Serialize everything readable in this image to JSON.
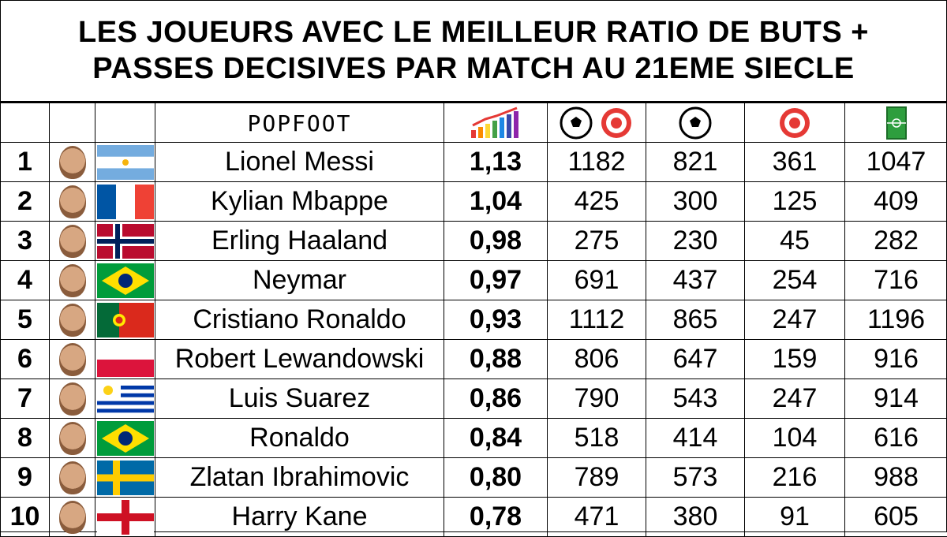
{
  "title": {
    "line1": "LES JOUEURS AVEC LE MEILLEUR RATIO DE BUTS +",
    "line2": "PASSES DECISIVES PAR MATCH AU 21EME SIECLE"
  },
  "header": {
    "logo": "POPFOOT",
    "icons": [
      "ratio-chart-icon",
      "ball-and-target-icon",
      "ball-icon",
      "target-icon",
      "pitch-icon"
    ]
  },
  "rows": [
    {
      "rank": "1",
      "name": "Lionel Messi",
      "flag": "argentina",
      "ratio": "1,13",
      "ga": "1182",
      "goals": "821",
      "assists": "361",
      "matches": "1047"
    },
    {
      "rank": "2",
      "name": "Kylian Mbappe",
      "flag": "france",
      "ratio": "1,04",
      "ga": "425",
      "goals": "300",
      "assists": "125",
      "matches": "409"
    },
    {
      "rank": "3",
      "name": "Erling Haaland",
      "flag": "norway",
      "ratio": "0,98",
      "ga": "275",
      "goals": "230",
      "assists": "45",
      "matches": "282"
    },
    {
      "rank": "4",
      "name": "Neymar",
      "flag": "brazil",
      "ratio": "0,97",
      "ga": "691",
      "goals": "437",
      "assists": "254",
      "matches": "716"
    },
    {
      "rank": "5",
      "name": "Cristiano Ronaldo",
      "flag": "portugal",
      "ratio": "0,93",
      "ga": "1112",
      "goals": "865",
      "assists": "247",
      "matches": "1196"
    },
    {
      "rank": "6",
      "name": "Robert Lewandowski",
      "flag": "poland",
      "ratio": "0,88",
      "ga": "806",
      "goals": "647",
      "assists": "159",
      "matches": "916"
    },
    {
      "rank": "7",
      "name": "Luis Suarez",
      "flag": "uruguay",
      "ratio": "0,86",
      "ga": "790",
      "goals": "543",
      "assists": "247",
      "matches": "914"
    },
    {
      "rank": "8",
      "name": "Ronaldo",
      "flag": "brazil",
      "ratio": "0,84",
      "ga": "518",
      "goals": "414",
      "assists": "104",
      "matches": "616"
    },
    {
      "rank": "9",
      "name": "Zlatan Ibrahimovic",
      "flag": "sweden",
      "ratio": "0,80",
      "ga": "789",
      "goals": "573",
      "assists": "216",
      "matches": "988"
    },
    {
      "rank": "10",
      "name": "Harry Kane",
      "flag": "england",
      "ratio": "0,78",
      "ga": "471",
      "goals": "380",
      "assists": "91",
      "matches": "605"
    }
  ]
}
